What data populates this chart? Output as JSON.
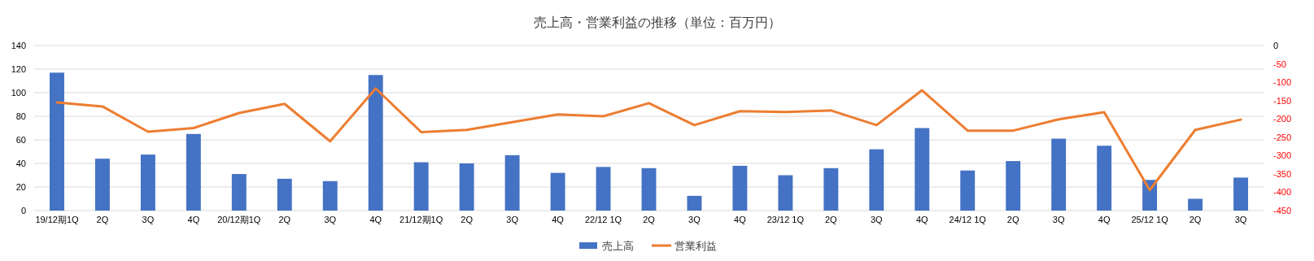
{
  "chart_data": {
    "type": "bar",
    "title": "売上高・営業利益の推移（単位：百万円）",
    "categories": [
      "19/12期1Q",
      "2Q",
      "3Q",
      "4Q",
      "20/12期1Q",
      "2Q",
      "3Q",
      "4Q",
      "21/12期1Q",
      "2Q",
      "3Q",
      "4Q",
      "22/12 1Q",
      "2Q",
      "3Q",
      "4Q",
      "23/12 1Q",
      "2Q",
      "3Q",
      "4Q",
      "24/12 1Q",
      "2Q",
      "3Q",
      "4Q",
      "25/12 1Q",
      "2Q",
      "3Q"
    ],
    "series": [
      {
        "name": "売上高",
        "color": "#4472c4",
        "values": [
          117,
          44,
          47.5,
          65,
          31,
          27,
          25,
          115,
          41,
          40,
          47,
          32,
          37,
          36,
          12.5,
          38,
          30,
          36,
          52,
          70,
          34,
          42,
          61,
          55,
          26,
          10,
          28
        ]
      },
      {
        "name": "営業利益",
        "type": "line",
        "axis": "y2",
        "color": "#ed7d31",
        "values": [
          -155,
          -166,
          -235,
          -225,
          -184,
          -159,
          -261,
          -117,
          -236,
          -230,
          -209,
          -188,
          -193,
          -157,
          -217,
          -179,
          -181,
          -177,
          -217,
          -122,
          -232,
          -232,
          -201,
          -182,
          -394,
          -230,
          -202
        ]
      }
    ],
    "ylim": [
      0,
      140
    ],
    "yticks": [
      0,
      20,
      40,
      60,
      80,
      100,
      120,
      140
    ],
    "y2lim": [
      -450,
      0
    ],
    "y2ticks": [
      0,
      -50,
      -100,
      -150,
      -200,
      -250,
      -300,
      -350,
      -400,
      -450
    ],
    "grid": "y",
    "legend": "bottom",
    "marker": "none",
    "line_style": "solid"
  }
}
